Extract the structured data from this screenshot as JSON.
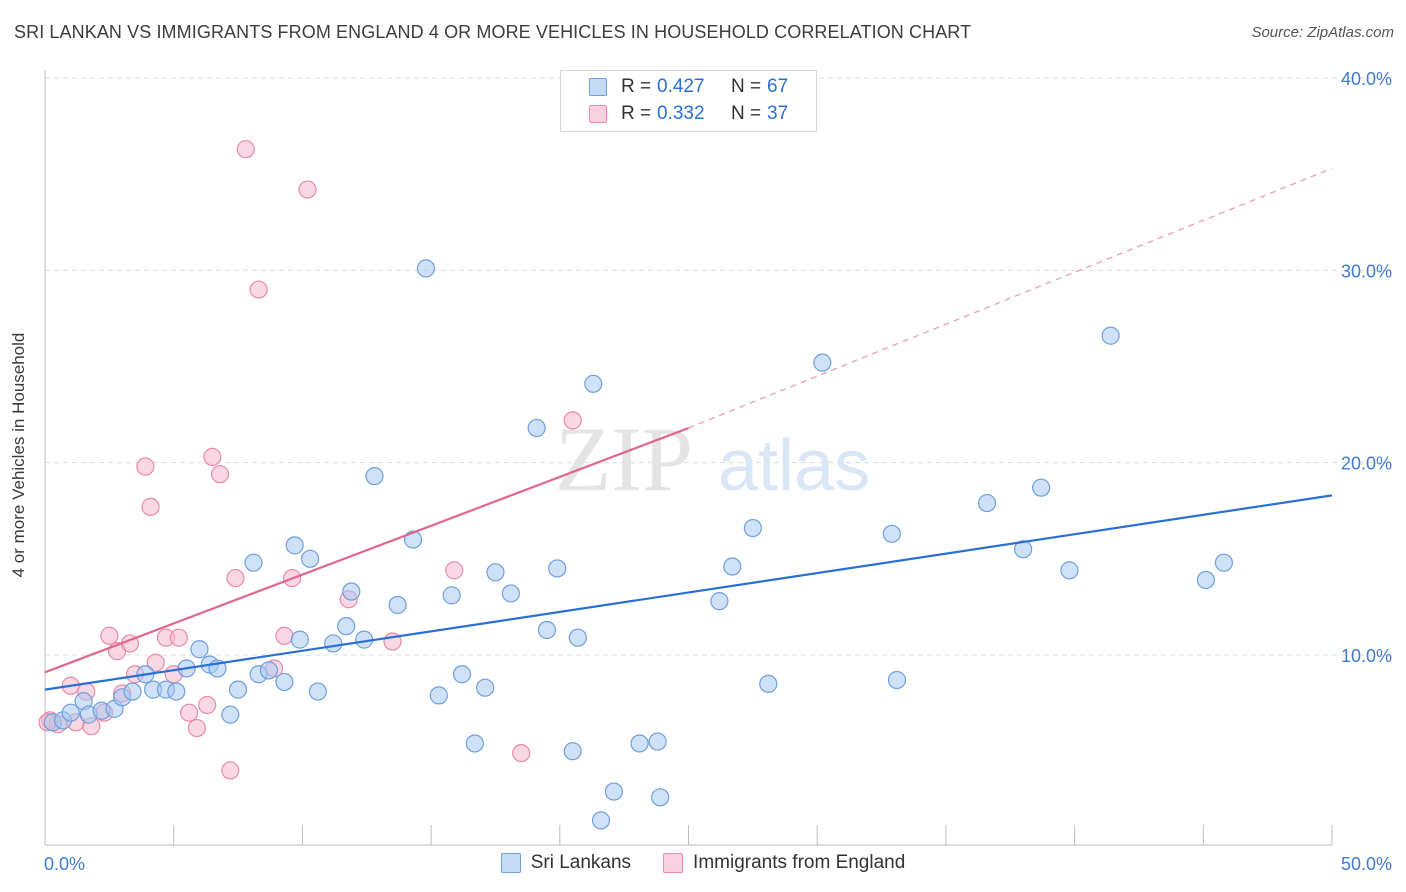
{
  "header": {
    "title": "SRI LANKAN VS IMMIGRANTS FROM ENGLAND 4 OR MORE VEHICLES IN HOUSEHOLD CORRELATION CHART",
    "source": "Source: ZipAtlas.com"
  },
  "watermark": {
    "zip": "ZIP",
    "atlas": "atlas"
  },
  "legend_top": {
    "rows": [
      {
        "r_label": "R =",
        "r_value": "0.427",
        "n_label": "N =",
        "n_value": "67",
        "color": "#a8c8f0"
      },
      {
        "r_label": "R =",
        "r_value": "0.332",
        "n_label": "N =",
        "n_value": "37",
        "color": "#f6b8cc"
      }
    ]
  },
  "legend_bottom": {
    "items": [
      {
        "label": "Sri Lankans",
        "color": "#a8c8f0"
      },
      {
        "label": "Immigrants from England",
        "color": "#f6b8cc"
      }
    ]
  },
  "colors": {
    "blue_fill": "#a8c8f0",
    "blue_stroke": "#6f9fdc",
    "blue_line": "#2a6fd6",
    "pink_fill": "#f6b8cc",
    "pink_stroke": "#e98aa8",
    "pink_line": "#e06690",
    "tick_text": "#3f7bd3",
    "grid": "#dcdcdc"
  },
  "chart_data": {
    "type": "scatter",
    "title": "SRI LANKAN VS IMMIGRANTS FROM ENGLAND 4 OR MORE VEHICLES IN HOUSEHOLD CORRELATION CHART",
    "xlabel": "",
    "ylabel": "4 or more Vehicles in Household",
    "xlim": [
      0,
      50
    ],
    "ylim": [
      0,
      42
    ],
    "x_tick_labels": [
      "0.0%",
      "50.0%"
    ],
    "y_ticks": [
      10,
      20,
      30,
      40
    ],
    "y_tick_labels": [
      "10.0%",
      "20.0%",
      "30.0%",
      "40.0%"
    ],
    "grid": true,
    "series": [
      {
        "name": "Sri Lankans",
        "r": 0.427,
        "n": 67,
        "trend": {
          "x": [
            0,
            50
          ],
          "y": [
            8.2,
            18.3
          ],
          "style": "solid"
        },
        "points": [
          {
            "x": 0.3,
            "y": 6.5
          },
          {
            "x": 0.7,
            "y": 6.6
          },
          {
            "x": 1.0,
            "y": 7.0
          },
          {
            "x": 1.5,
            "y": 7.6
          },
          {
            "x": 1.7,
            "y": 6.9
          },
          {
            "x": 2.2,
            "y": 7.1
          },
          {
            "x": 2.7,
            "y": 7.2
          },
          {
            "x": 3.0,
            "y": 7.8
          },
          {
            "x": 3.4,
            "y": 8.1
          },
          {
            "x": 3.9,
            "y": 9.0
          },
          {
            "x": 4.2,
            "y": 8.2
          },
          {
            "x": 4.7,
            "y": 8.2
          },
          {
            "x": 5.1,
            "y": 8.1
          },
          {
            "x": 5.5,
            "y": 9.3
          },
          {
            "x": 6.0,
            "y": 10.3
          },
          {
            "x": 6.4,
            "y": 9.5
          },
          {
            "x": 6.7,
            "y": 9.3
          },
          {
            "x": 7.2,
            "y": 6.9
          },
          {
            "x": 7.5,
            "y": 8.2
          },
          {
            "x": 8.1,
            "y": 14.8
          },
          {
            "x": 8.3,
            "y": 9.0
          },
          {
            "x": 8.7,
            "y": 9.2
          },
          {
            "x": 9.3,
            "y": 8.6
          },
          {
            "x": 9.7,
            "y": 15.7
          },
          {
            "x": 9.9,
            "y": 10.8
          },
          {
            "x": 10.3,
            "y": 15.0
          },
          {
            "x": 10.6,
            "y": 8.1
          },
          {
            "x": 11.2,
            "y": 10.6
          },
          {
            "x": 11.7,
            "y": 11.5
          },
          {
            "x": 11.9,
            "y": 13.3
          },
          {
            "x": 12.4,
            "y": 10.8
          },
          {
            "x": 12.8,
            "y": 19.3
          },
          {
            "x": 13.7,
            "y": 12.6
          },
          {
            "x": 14.3,
            "y": 16.0
          },
          {
            "x": 14.8,
            "y": 30.1
          },
          {
            "x": 15.3,
            "y": 7.9
          },
          {
            "x": 15.8,
            "y": 13.1
          },
          {
            "x": 16.2,
            "y": 9.0
          },
          {
            "x": 16.7,
            "y": 5.4
          },
          {
            "x": 17.1,
            "y": 8.3
          },
          {
            "x": 17.5,
            "y": 14.3
          },
          {
            "x": 18.1,
            "y": 13.2
          },
          {
            "x": 19.1,
            "y": 21.8
          },
          {
            "x": 19.5,
            "y": 11.3
          },
          {
            "x": 19.9,
            "y": 14.5
          },
          {
            "x": 20.5,
            "y": 5.0
          },
          {
            "x": 20.7,
            "y": 10.9
          },
          {
            "x": 21.3,
            "y": 24.1
          },
          {
            "x": 21.6,
            "y": 1.4
          },
          {
            "x": 22.1,
            "y": 2.9
          },
          {
            "x": 23.1,
            "y": 5.4
          },
          {
            "x": 23.8,
            "y": 5.5
          },
          {
            "x": 23.9,
            "y": 2.6
          },
          {
            "x": 26.2,
            "y": 12.8
          },
          {
            "x": 26.7,
            "y": 14.6
          },
          {
            "x": 27.5,
            "y": 16.6
          },
          {
            "x": 28.1,
            "y": 8.5
          },
          {
            "x": 30.2,
            "y": 25.2
          },
          {
            "x": 32.9,
            "y": 16.3
          },
          {
            "x": 33.1,
            "y": 8.7
          },
          {
            "x": 36.6,
            "y": 17.9
          },
          {
            "x": 38.0,
            "y": 15.5
          },
          {
            "x": 38.7,
            "y": 18.7
          },
          {
            "x": 39.8,
            "y": 14.4
          },
          {
            "x": 41.4,
            "y": 26.6
          },
          {
            "x": 45.1,
            "y": 13.9
          },
          {
            "x": 45.8,
            "y": 14.8
          }
        ]
      },
      {
        "name": "Immigrants from England",
        "r": 0.332,
        "n": 37,
        "trend": {
          "x": [
            0,
            25
          ],
          "y": [
            9.1,
            21.8
          ],
          "style": "solid",
          "extension": {
            "x": [
              25,
              50
            ],
            "y": [
              21.8,
              35.3
            ],
            "style": "dashed"
          }
        },
        "points": [
          {
            "x": 0.2,
            "y": 6.6
          },
          {
            "x": 0.5,
            "y": 6.4
          },
          {
            "x": 1.0,
            "y": 8.4
          },
          {
            "x": 1.2,
            "y": 6.5
          },
          {
            "x": 1.6,
            "y": 8.1
          },
          {
            "x": 1.8,
            "y": 6.3
          },
          {
            "x": 2.3,
            "y": 7.0
          },
          {
            "x": 2.5,
            "y": 11.0
          },
          {
            "x": 2.8,
            "y": 10.2
          },
          {
            "x": 3.0,
            "y": 8.0
          },
          {
            "x": 3.3,
            "y": 10.6
          },
          {
            "x": 3.5,
            "y": 9.0
          },
          {
            "x": 3.9,
            "y": 19.8
          },
          {
            "x": 4.1,
            "y": 17.7
          },
          {
            "x": 4.3,
            "y": 9.6
          },
          {
            "x": 4.7,
            "y": 10.9
          },
          {
            "x": 5.0,
            "y": 9.0
          },
          {
            "x": 5.2,
            "y": 10.9
          },
          {
            "x": 5.6,
            "y": 7.0
          },
          {
            "x": 5.9,
            "y": 6.2
          },
          {
            "x": 6.3,
            "y": 7.4
          },
          {
            "x": 6.5,
            "y": 20.3
          },
          {
            "x": 6.8,
            "y": 19.4
          },
          {
            "x": 7.2,
            "y": 4.0
          },
          {
            "x": 7.4,
            "y": 14.0
          },
          {
            "x": 7.8,
            "y": 36.3
          },
          {
            "x": 8.3,
            "y": 29.0
          },
          {
            "x": 8.9,
            "y": 9.3
          },
          {
            "x": 9.3,
            "y": 11.0
          },
          {
            "x": 9.6,
            "y": 14.0
          },
          {
            "x": 10.2,
            "y": 34.2
          },
          {
            "x": 11.8,
            "y": 12.9
          },
          {
            "x": 13.5,
            "y": 10.7
          },
          {
            "x": 15.9,
            "y": 14.4
          },
          {
            "x": 18.5,
            "y": 4.9
          },
          {
            "x": 20.5,
            "y": 22.2
          },
          {
            "x": 0.1,
            "y": 6.5
          }
        ]
      }
    ]
  }
}
